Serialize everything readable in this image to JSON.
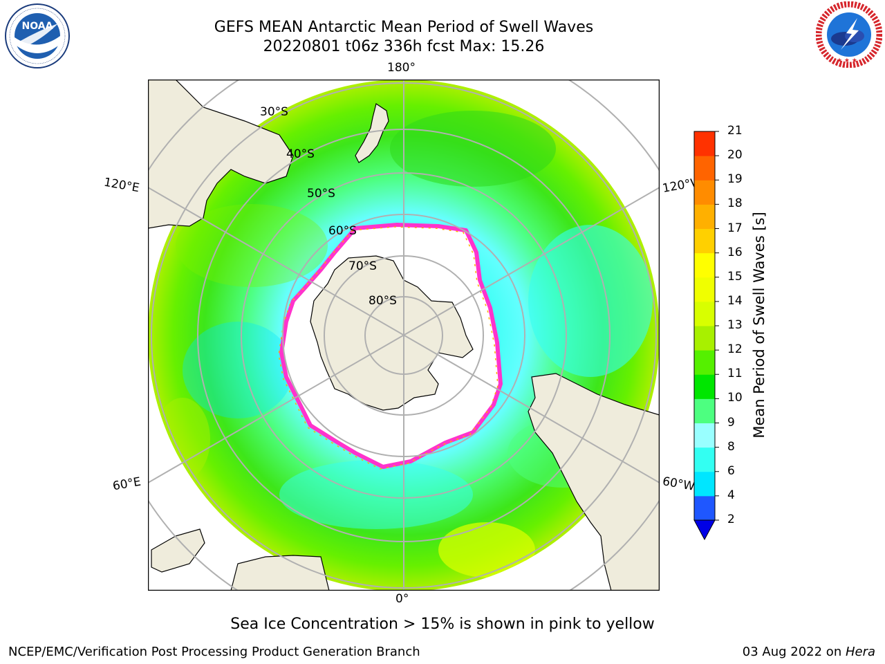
{
  "header": {
    "title_line1": "GEFS MEAN Antarctic Mean Period of Swell Waves",
    "title_line2": "20220801 t06z 336h fcst   Max: 15.26"
  },
  "logos": {
    "left": {
      "text": "NOAA",
      "ring_text": "NATIONAL OCEANIC AND ATMOSPHERIC ADMINISTRATION · U.S. DEPARTMENT OF COMMERCE"
    },
    "right": {
      "ring_text": "NATIONAL WEATHER SERVICE"
    }
  },
  "map": {
    "longitude_labels": {
      "top": "180°",
      "bottom": "0°",
      "upper_left": "120°E",
      "upper_right": "120°W",
      "lower_left": "60°E",
      "lower_right": "60°W"
    },
    "latitude_labels": [
      "30°S",
      "40°S",
      "50°S",
      "60°S",
      "70°S",
      "80°S"
    ],
    "colors": {
      "land": "#efecdc",
      "sea_ice_ring": "#ff33cc",
      "graticule": "#b0b0b0"
    }
  },
  "colorbar": {
    "label": "Mean Period of Swell Waves [s]",
    "ticks": [
      "2",
      "4",
      "6",
      "8",
      "9",
      "10",
      "11",
      "12",
      "13",
      "14",
      "15",
      "16",
      "17",
      "18",
      "19",
      "20",
      "21"
    ],
    "colors": [
      "#1f57ff",
      "#00e6ff",
      "#33fff2",
      "#99ffff",
      "#4dff80",
      "#00e600",
      "#55f000",
      "#a8f000",
      "#d8ff00",
      "#f0ff00",
      "#ffff00",
      "#ffd000",
      "#ffb000",
      "#ff8c00",
      "#ff6400",
      "#ff3200"
    ],
    "extend_color": "#0000e6"
  },
  "note": "Sea Ice Concentration > 15% is shown in pink to yellow",
  "footer": {
    "left": "NCEP/EMC/Verification Post Processing Product Generation Branch",
    "date": "03 Aug 2022 on ",
    "machine": "Hera"
  }
}
